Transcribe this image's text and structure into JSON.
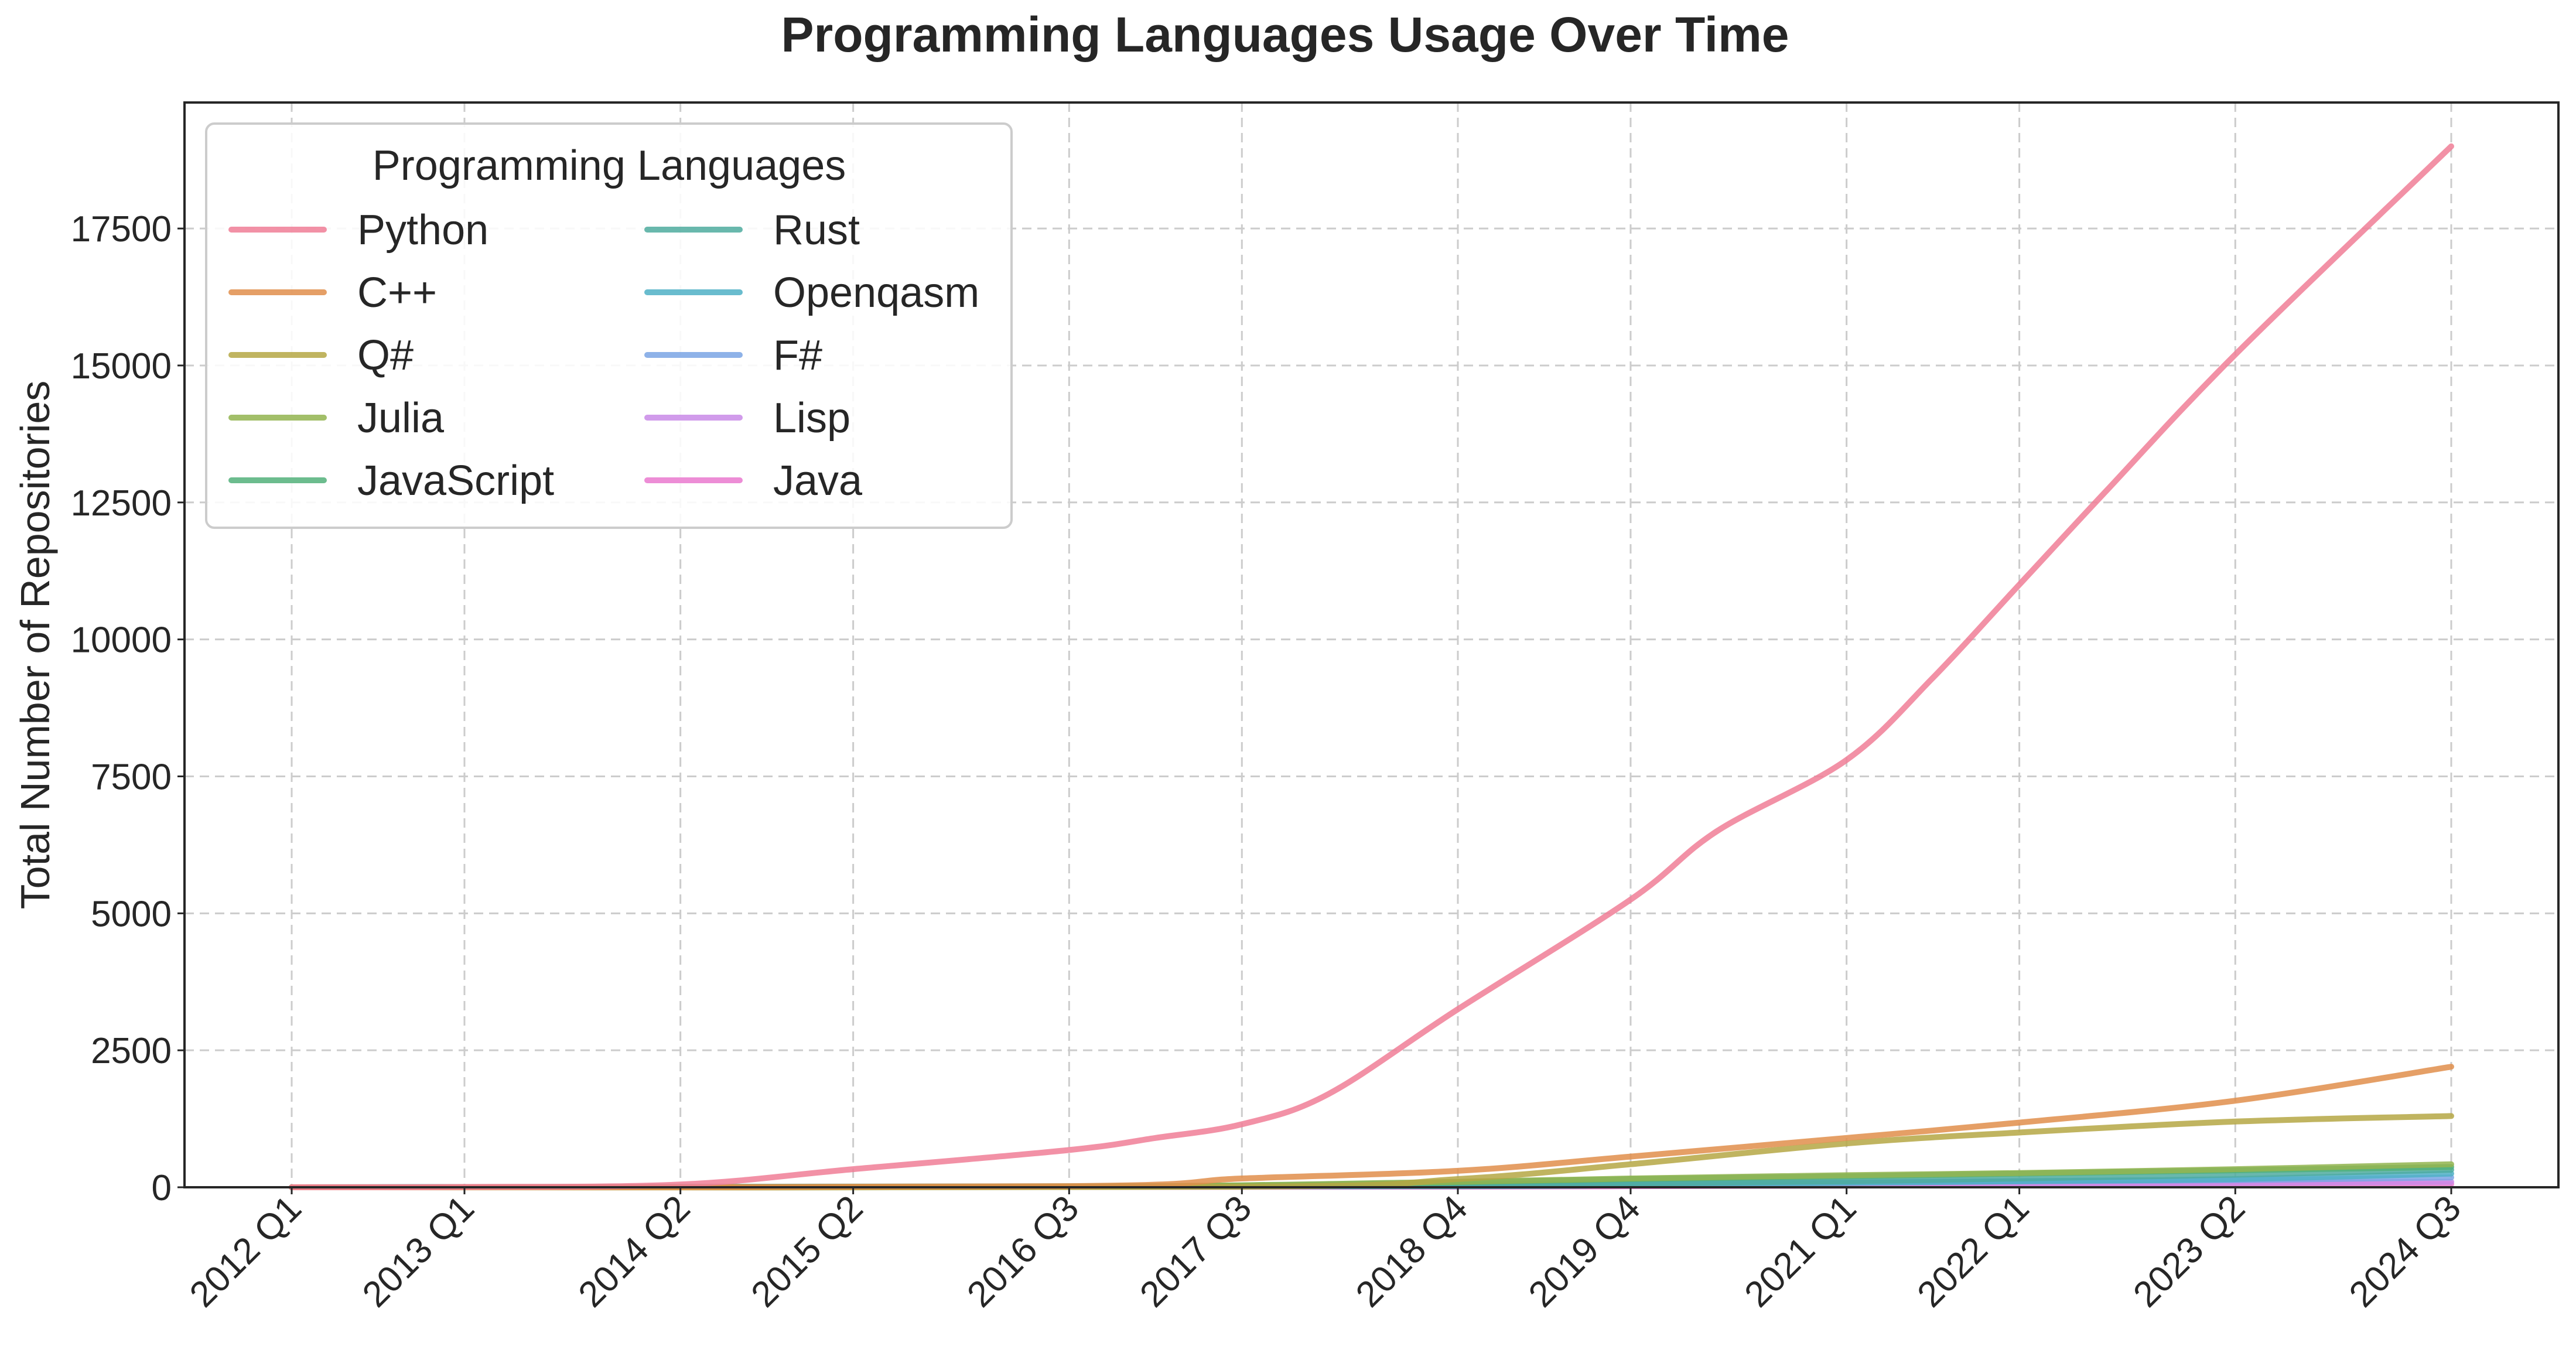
{
  "chart_data": {
    "type": "line",
    "title": "Programming Languages Usage Over Time",
    "xlabel": "",
    "ylabel": "Total Number of Repositories",
    "ylim": [
      0,
      19800
    ],
    "yticks": [
      0,
      2500,
      5000,
      7500,
      10000,
      12500,
      15000,
      17500
    ],
    "xtick_labels": [
      "2012 Q1",
      "2013 Q1",
      "2014 Q2",
      "2015 Q2",
      "2016 Q3",
      "2017 Q3",
      "2018 Q4",
      "2019 Q4",
      "2021 Q1",
      "2022 Q1",
      "2023 Q2",
      "2024 Q3"
    ],
    "x_range": [
      "2012 Q1",
      "2024 Q3"
    ],
    "grid": true,
    "legend": {
      "title": "Programming Languages",
      "placement": "top-left",
      "columns": 2
    },
    "series": [
      {
        "name": "Python",
        "color": "#f07e96",
        "points": [
          [
            "2012 Q1",
            0
          ],
          [
            "2013 Q1",
            5
          ],
          [
            "2014 Q2",
            50
          ],
          [
            "2015 Q2",
            330
          ],
          [
            "2016 Q3",
            680
          ],
          [
            "2017 Q1",
            900
          ],
          [
            "2017 Q3",
            1150
          ],
          [
            "2018 Q1",
            1700
          ],
          [
            "2018 Q4",
            3250
          ],
          [
            "2019 Q4",
            5250
          ],
          [
            "2020 Q2",
            6500
          ],
          [
            "2021 Q1",
            7800
          ],
          [
            "2021 Q3",
            9300
          ],
          [
            "2022 Q1",
            11000
          ],
          [
            "2022 Q3",
            12700
          ],
          [
            "2023 Q2",
            15200
          ],
          [
            "2024 Q3",
            19000
          ]
        ]
      },
      {
        "name": "C++",
        "color": "#e08e4b",
        "points": [
          [
            "2012 Q1",
            0
          ],
          [
            "2016 Q3",
            20
          ],
          [
            "2017 Q3",
            160
          ],
          [
            "2018 Q4",
            300
          ],
          [
            "2019 Q4",
            560
          ],
          [
            "2021 Q1",
            900
          ],
          [
            "2022 Q1",
            1180
          ],
          [
            "2023 Q2",
            1580
          ],
          [
            "2024 Q3",
            2200
          ]
        ]
      },
      {
        "name": "Q#",
        "color": "#b5a744",
        "points": [
          [
            "2012 Q1",
            0
          ],
          [
            "2017 Q3",
            10
          ],
          [
            "2018 Q4",
            150
          ],
          [
            "2019 Q4",
            420
          ],
          [
            "2021 Q1",
            800
          ],
          [
            "2022 Q1",
            1000
          ],
          [
            "2023 Q2",
            1200
          ],
          [
            "2024 Q3",
            1300
          ]
        ]
      },
      {
        "name": "Julia",
        "color": "#92b44f",
        "points": [
          [
            "2012 Q1",
            0
          ],
          [
            "2016 Q3",
            10
          ],
          [
            "2018 Q4",
            100
          ],
          [
            "2019 Q4",
            160
          ],
          [
            "2021 Q1",
            220
          ],
          [
            "2022 Q1",
            260
          ],
          [
            "2023 Q2",
            330
          ],
          [
            "2024 Q3",
            420
          ]
        ]
      },
      {
        "name": "JavaScript",
        "color": "#52b07a",
        "points": [
          [
            "2012 Q1",
            0
          ],
          [
            "2016 Q3",
            10
          ],
          [
            "2018 Q4",
            90
          ],
          [
            "2019 Q4",
            150
          ],
          [
            "2021 Q1",
            200
          ],
          [
            "2022 Q1",
            250
          ],
          [
            "2023 Q2",
            310
          ],
          [
            "2024 Q3",
            370
          ]
        ]
      },
      {
        "name": "Rust",
        "color": "#4fac9f",
        "points": [
          [
            "2012 Q1",
            0
          ],
          [
            "2018 Q4",
            30
          ],
          [
            "2019 Q4",
            70
          ],
          [
            "2021 Q1",
            110
          ],
          [
            "2022 Q1",
            160
          ],
          [
            "2023 Q2",
            230
          ],
          [
            "2024 Q3",
            320
          ]
        ]
      },
      {
        "name": "Openqasm",
        "color": "#4fb0c6",
        "points": [
          [
            "2012 Q1",
            0
          ],
          [
            "2018 Q4",
            20
          ],
          [
            "2019 Q4",
            50
          ],
          [
            "2021 Q1",
            80
          ],
          [
            "2022 Q1",
            110
          ],
          [
            "2023 Q2",
            150
          ],
          [
            "2024 Q3",
            250
          ]
        ]
      },
      {
        "name": "F#",
        "color": "#7aa5e4",
        "points": [
          [
            "2012 Q1",
            0
          ],
          [
            "2016 Q3",
            10
          ],
          [
            "2018 Q4",
            50
          ],
          [
            "2019 Q4",
            70
          ],
          [
            "2021 Q1",
            90
          ],
          [
            "2022 Q1",
            110
          ],
          [
            "2023 Q2",
            130
          ],
          [
            "2024 Q3",
            180
          ]
        ]
      },
      {
        "name": "Lisp",
        "color": "#c98ae8",
        "points": [
          [
            "2012 Q1",
            0
          ],
          [
            "2016 Q3",
            5
          ],
          [
            "2018 Q4",
            20
          ],
          [
            "2019 Q4",
            35
          ],
          [
            "2021 Q1",
            50
          ],
          [
            "2022 Q1",
            60
          ],
          [
            "2023 Q2",
            80
          ],
          [
            "2024 Q3",
            100
          ]
        ]
      },
      {
        "name": "Java",
        "color": "#ea79cf",
        "points": [
          [
            "2012 Q1",
            0
          ],
          [
            "2018 Q4",
            10
          ],
          [
            "2019 Q4",
            20
          ],
          [
            "2021 Q1",
            30
          ],
          [
            "2022 Q1",
            40
          ],
          [
            "2023 Q2",
            50
          ],
          [
            "2024 Q3",
            60
          ]
        ]
      }
    ]
  }
}
